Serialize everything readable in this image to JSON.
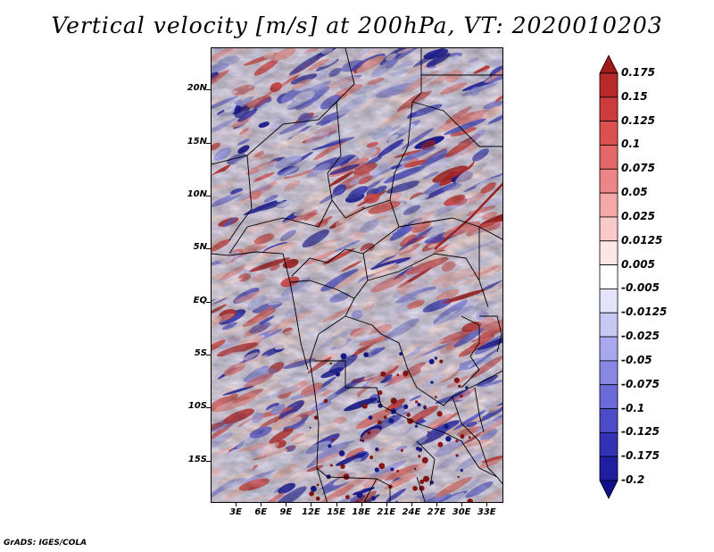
{
  "title": "Vertical velocity [m/s] at 200hPa, VT: 2020010203",
  "credit": "GrADS: IGES/COLA",
  "map": {
    "lon_range": [
      0,
      35
    ],
    "lat_range": [
      -19,
      24
    ],
    "lat_ticks": [
      {
        "lat": 20,
        "label": "20N"
      },
      {
        "lat": 15,
        "label": "15N"
      },
      {
        "lat": 10,
        "label": "10N"
      },
      {
        "lat": 5,
        "label": "5N"
      },
      {
        "lat": 0,
        "label": "EQ"
      },
      {
        "lat": -5,
        "label": "5S"
      },
      {
        "lat": -10,
        "label": "10S"
      },
      {
        "lat": -15,
        "label": "15S"
      }
    ],
    "lon_ticks": [
      {
        "lon": 3,
        "label": "3E"
      },
      {
        "lon": 6,
        "label": "6E"
      },
      {
        "lon": 9,
        "label": "9E"
      },
      {
        "lon": 12,
        "label": "12E"
      },
      {
        "lon": 15,
        "label": "15E"
      },
      {
        "lon": 18,
        "label": "18E"
      },
      {
        "lon": 21,
        "label": "21E"
      },
      {
        "lon": 24,
        "label": "24E"
      },
      {
        "lon": 27,
        "label": "27E"
      },
      {
        "lon": 30,
        "label": "30E"
      },
      {
        "lon": 33,
        "label": "33E"
      }
    ]
  },
  "colorbar": {
    "labels": [
      "0.175",
      "0.15",
      "0.125",
      "0.1",
      "0.075",
      "0.05",
      "0.025",
      "0.0125",
      "0.005",
      "-0.005",
      "-0.0125",
      "-0.025",
      "-0.05",
      "-0.075",
      "-0.1",
      "-0.125",
      "-0.175",
      "-0.2"
    ],
    "colors": [
      "#a01818",
      "#b82a2a",
      "#cc3c3c",
      "#dc5050",
      "#e46868",
      "#ec8686",
      "#f4a8a8",
      "#f9caca",
      "#fde6e6",
      "#ffffff",
      "#e4e4fa",
      "#c8c8f4",
      "#a8a8ee",
      "#8888e4",
      "#6a6ad8",
      "#4c4cc8",
      "#3232b4",
      "#1e1ea0",
      "#10108a"
    ]
  }
}
